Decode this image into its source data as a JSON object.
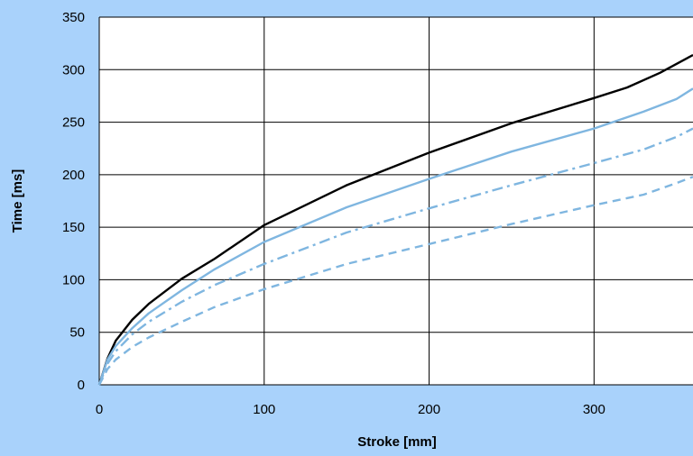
{
  "colors": {
    "background": "#a9d2fb",
    "plot_area": "#ffffff",
    "grid": "#000000",
    "series_dark": "#000000",
    "series_light": "#7fb6e0"
  },
  "chart_data": {
    "type": "line",
    "title": "",
    "xlabel": "Stroke [mm]",
    "ylabel": "Time [ms]",
    "xlim": [
      0,
      360
    ],
    "ylim": [
      0,
      350
    ],
    "x_ticks": [
      0,
      100,
      200,
      300
    ],
    "y_ticks": [
      0,
      50,
      100,
      150,
      200,
      250,
      300,
      350
    ],
    "grid": true,
    "legend": "none",
    "series": [
      {
        "color": "#000000",
        "dash": "solid",
        "points": [
          [
            0,
            0
          ],
          [
            5,
            25
          ],
          [
            10,
            42
          ],
          [
            20,
            62
          ],
          [
            30,
            77
          ],
          [
            50,
            101
          ],
          [
            70,
            120
          ],
          [
            100,
            152
          ],
          [
            150,
            190
          ],
          [
            200,
            221
          ],
          [
            250,
            249
          ],
          [
            300,
            273
          ],
          [
            320,
            283
          ],
          [
            340,
            297
          ],
          [
            360,
            314
          ]
        ]
      },
      {
        "color": "#7fb6e0",
        "dash": "solid",
        "points": [
          [
            0,
            0
          ],
          [
            5,
            24
          ],
          [
            10,
            37
          ],
          [
            20,
            54
          ],
          [
            30,
            68
          ],
          [
            50,
            90
          ],
          [
            70,
            110
          ],
          [
            100,
            136
          ],
          [
            150,
            169
          ],
          [
            200,
            196
          ],
          [
            250,
            222
          ],
          [
            300,
            244
          ],
          [
            330,
            260
          ],
          [
            350,
            272
          ],
          [
            360,
            282
          ]
        ]
      },
      {
        "color": "#7fb6e0",
        "dash": "dashdot",
        "points": [
          [
            0,
            0
          ],
          [
            5,
            20
          ],
          [
            10,
            32
          ],
          [
            20,
            48
          ],
          [
            30,
            60
          ],
          [
            50,
            79
          ],
          [
            70,
            95
          ],
          [
            100,
            115
          ],
          [
            150,
            145
          ],
          [
            200,
            168
          ],
          [
            250,
            190
          ],
          [
            300,
            211
          ],
          [
            330,
            224
          ],
          [
            350,
            236
          ],
          [
            360,
            244
          ]
        ]
      },
      {
        "color": "#7fb6e0",
        "dash": "dashed",
        "points": [
          [
            0,
            0
          ],
          [
            5,
            15
          ],
          [
            10,
            24
          ],
          [
            20,
            36
          ],
          [
            30,
            45
          ],
          [
            50,
            60
          ],
          [
            70,
            74
          ],
          [
            100,
            91
          ],
          [
            150,
            115
          ],
          [
            200,
            134
          ],
          [
            250,
            153
          ],
          [
            300,
            171
          ],
          [
            330,
            181
          ],
          [
            350,
            192
          ],
          [
            360,
            198
          ]
        ]
      }
    ]
  }
}
